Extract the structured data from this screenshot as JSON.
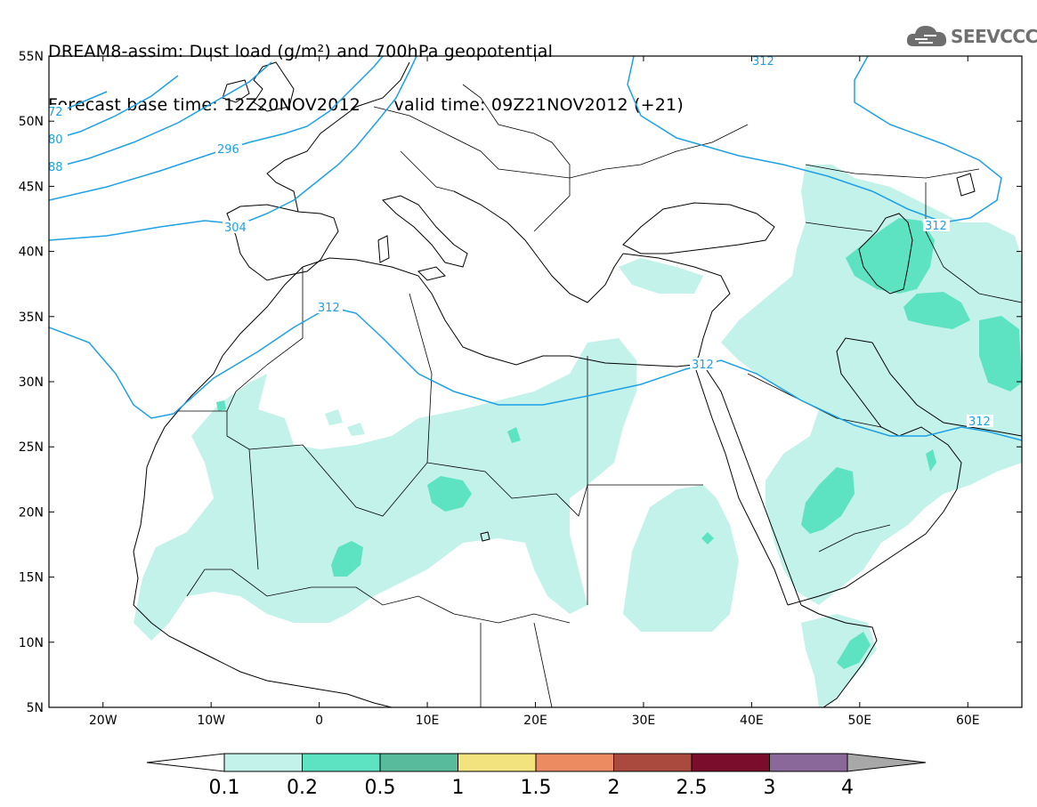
{
  "header": {
    "line1": "DREAM8-assim: Dust load (g/m²) and 700hPa geopotential",
    "line2_left": "Forecast base time: 12Z20NOV2012",
    "line2_right": "valid time: 09Z21NOV2012 (+21)"
  },
  "logo": {
    "text": "SEEVCCC",
    "icon": "cloud-icon"
  },
  "map": {
    "lon_range": [
      -25,
      65
    ],
    "lat_range": [
      5,
      55
    ],
    "lat_ticks": [
      "55N",
      "50N",
      "45N",
      "40N",
      "35N",
      "30N",
      "25N",
      "20N",
      "15N",
      "10N",
      "5N"
    ],
    "lon_ticks": [
      "20W",
      "10W",
      "0",
      "10E",
      "20E",
      "30E",
      "40E",
      "50E",
      "60E"
    ],
    "contour_labels": [
      "72",
      "80",
      "88",
      "296",
      "304",
      "312",
      "312",
      "312",
      "312",
      "312"
    ],
    "contour_color": "#1ea0e6"
  },
  "legend": {
    "labels": [
      "0.1",
      "0.2",
      "0.5",
      "1",
      "1.5",
      "2",
      "2.5",
      "3",
      "4"
    ],
    "colors": [
      "#c3f2ea",
      "#5ee3c2",
      "#58bc9c",
      "#f2e37e",
      "#ec8a62",
      "#aa4a3e",
      "#7a0d2c",
      "#8a6899",
      "#a8a8a8"
    ],
    "low_color": "#ffffff",
    "high_color": "#a8a8a8"
  }
}
